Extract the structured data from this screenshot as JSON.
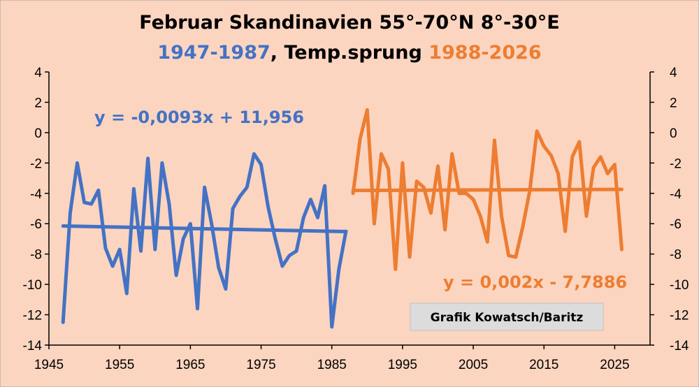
{
  "chart_data": {
    "type": "line",
    "title": "Februar Skandinavien 55°-70°N 8°-30°E",
    "subtitle": {
      "part1": "1947-1987",
      "part2": ", Temp.sprung ",
      "part3": "1988-2026"
    },
    "xlim": [
      1945,
      2030
    ],
    "ylim": [
      -14,
      4
    ],
    "xticks": [
      1945,
      1955,
      1965,
      1975,
      1985,
      1995,
      2005,
      2015,
      2025
    ],
    "yticks": [
      4,
      2,
      0,
      -2,
      -4,
      -6,
      -8,
      -10,
      -12,
      -14
    ],
    "grid": false,
    "series": [
      {
        "color": "#4472c4",
        "x": [
          1947,
          1948,
          1949,
          1950,
          1951,
          1952,
          1953,
          1954,
          1955,
          1956,
          1957,
          1958,
          1959,
          1960,
          1961,
          1962,
          1963,
          1964,
          1965,
          1966,
          1967,
          1968,
          1969,
          1970,
          1971,
          1972,
          1973,
          1974,
          1975,
          1976,
          1977,
          1978,
          1979,
          1980,
          1981,
          1982,
          1983,
          1984,
          1985,
          1986,
          1987
        ],
        "values": [
          -12.5,
          -5.3,
          -2.0,
          -4.6,
          -4.7,
          -3.8,
          -7.6,
          -8.8,
          -7.7,
          -10.6,
          -3.7,
          -7.8,
          -1.7,
          -7.7,
          -2.0,
          -4.7,
          -9.4,
          -7.0,
          -6.0,
          -11.6,
          -3.6,
          -6.0,
          -8.9,
          -10.3,
          -5.0,
          -4.2,
          -3.6,
          -1.4,
          -2.1,
          -4.9,
          -7.0,
          -8.8,
          -8.1,
          -7.8,
          -5.6,
          -4.4,
          -5.6,
          -3.5,
          -12.8,
          -9.0,
          -6.5
        ]
      },
      {
        "color": "#ed7d31",
        "x": [
          1988,
          1989,
          1990,
          1991,
          1992,
          1993,
          1994,
          1995,
          1996,
          1997,
          1998,
          1999,
          2000,
          2001,
          2002,
          2003,
          2004,
          2005,
          2006,
          2007,
          2008,
          2009,
          2010,
          2011,
          2012,
          2013,
          2014,
          2015,
          2016,
          2017,
          2018,
          2019,
          2020,
          2021,
          2022,
          2023,
          2024,
          2025,
          2026
        ],
        "values": [
          -4.0,
          -0.4,
          1.5,
          -6.0,
          -1.4,
          -2.4,
          -9.0,
          -2.0,
          -8.2,
          -3.2,
          -3.6,
          -5.3,
          -2.2,
          -6.4,
          -1.4,
          -4.0,
          -4.0,
          -4.4,
          -5.5,
          -7.2,
          -0.5,
          -5.5,
          -8.1,
          -8.2,
          -6.2,
          -3.8,
          0.1,
          -0.9,
          -1.5,
          -2.7,
          -6.5,
          -1.6,
          -0.6,
          -5.5,
          -2.3,
          -1.6,
          -2.7,
          -2.1,
          -7.7
        ]
      }
    ],
    "trendlines": [
      {
        "equation": "y = -0,0093x + 11,956",
        "color": "#4472c4",
        "x": [
          1947,
          1987
        ],
        "values": [
          -6.15,
          -6.52
        ]
      },
      {
        "equation": "y = 0,002x - 7,7886",
        "color": "#ed7d31",
        "x": [
          1988,
          2026
        ],
        "values": [
          -3.81,
          -3.74
        ]
      }
    ],
    "annotation": "Grafik Kowatsch/Baritz"
  }
}
